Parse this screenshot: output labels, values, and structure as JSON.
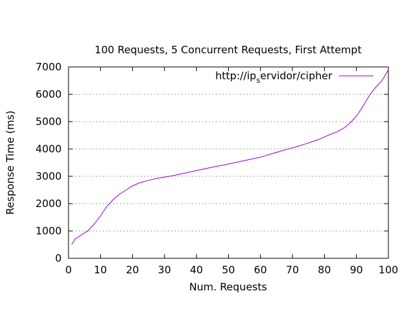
{
  "chart_data": {
    "type": "line",
    "title": "100 Requests, 5 Concurrent Requests, First Attempt",
    "xlabel": "Num. Requests",
    "ylabel": "Response Time (ms)",
    "xlim": [
      0,
      100
    ],
    "ylim": [
      0,
      7000
    ],
    "xticks": [
      0,
      10,
      20,
      30,
      40,
      50,
      60,
      70,
      80,
      90,
      100
    ],
    "yticks": [
      0,
      1000,
      2000,
      3000,
      4000,
      5000,
      6000,
      7000
    ],
    "grid": "horizontal dotted",
    "legend_position": "top-right",
    "series": [
      {
        "name_main": "http://ip",
        "name_sub": "s",
        "name_rest": "ervidor/cipher",
        "color": "#9400d3",
        "x": [
          1,
          2,
          4,
          6,
          8,
          10,
          12,
          14,
          16,
          18,
          20,
          22,
          24,
          26,
          28,
          30,
          32,
          34,
          36,
          38,
          40,
          42,
          44,
          46,
          48,
          50,
          52,
          54,
          56,
          58,
          60,
          62,
          64,
          66,
          68,
          70,
          72,
          74,
          76,
          78,
          80,
          82,
          84,
          86,
          88,
          90,
          92,
          94,
          96,
          98,
          99,
          100
        ],
        "y": [
          500,
          700,
          850,
          1000,
          1250,
          1550,
          1900,
          2150,
          2350,
          2500,
          2650,
          2750,
          2820,
          2880,
          2930,
          2970,
          3010,
          3060,
          3110,
          3160,
          3210,
          3260,
          3310,
          3360,
          3400,
          3450,
          3500,
          3550,
          3600,
          3650,
          3700,
          3770,
          3840,
          3910,
          3980,
          4040,
          4110,
          4180,
          4260,
          4340,
          4440,
          4540,
          4630,
          4760,
          4950,
          5200,
          5550,
          5950,
          6250,
          6500,
          6700,
          6900
        ]
      }
    ]
  }
}
